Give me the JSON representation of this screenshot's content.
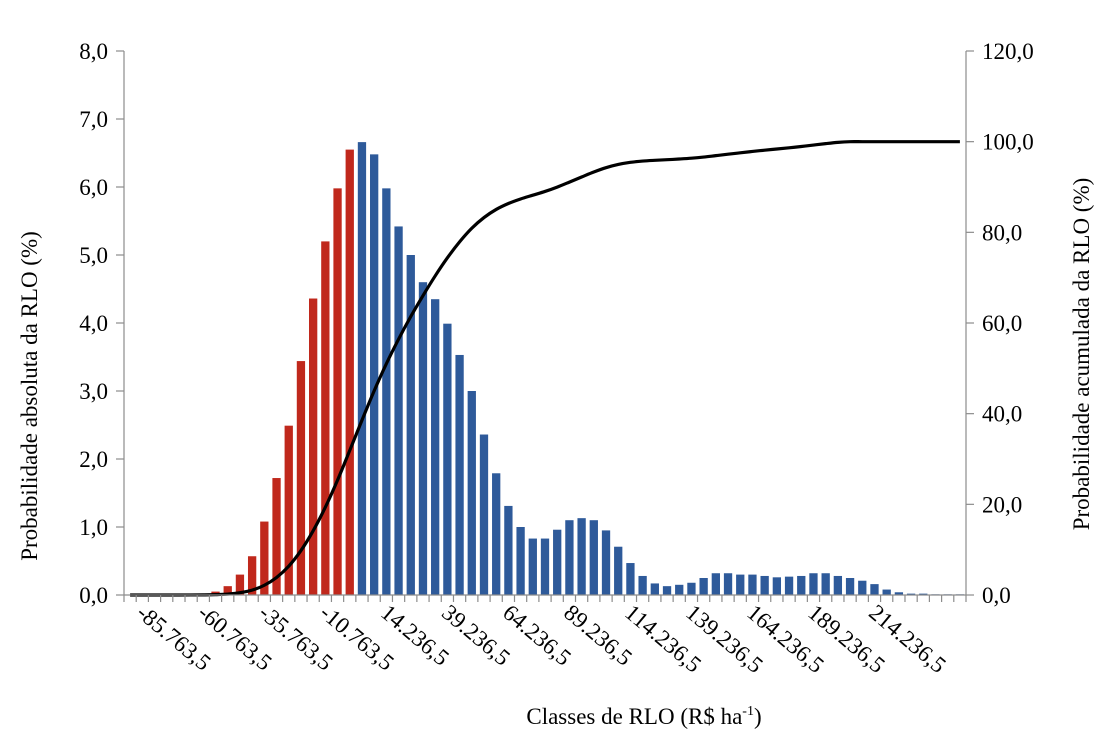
{
  "chart_data": {
    "type": "bar",
    "title": "",
    "xlabel": {
      "main": "Classes de RLO (R$ ha",
      "sup": "-1",
      "close": ")"
    },
    "ylabel": "Probabilidade absoluta da RLO (%)",
    "y2label": "Probabilidade acumulada da RLO (%)",
    "ylim": [
      0,
      8
    ],
    "y2lim": [
      0,
      120
    ],
    "yticks": [
      "0,0",
      "1,0",
      "2,0",
      "3,0",
      "4,0",
      "5,0",
      "6,0",
      "7,0",
      "8,0"
    ],
    "y2ticks": [
      "0,0",
      "20,0",
      "40,0",
      "60,0",
      "80,0",
      "100,0",
      "120,0"
    ],
    "xtick_labels": [
      "-85.763,5",
      "-60.763,5",
      "-35.763,5",
      "-10.763,5",
      "14.236,5",
      "39.236,5",
      "64.236,5",
      "89.236,5",
      "114.236,5",
      "139.236,5",
      "164.236,5",
      "189.236,5",
      "214.236,5"
    ],
    "class_width": 5000,
    "first_class": -90763.5,
    "xtick_every": 5,
    "xtick_start_index": 1,
    "grid": false,
    "legend": "none",
    "negative_color": "#c0281c",
    "positive_color": "#2e5a9a",
    "line_color": "#000000",
    "series": [
      {
        "name": "",
        "type": "bar",
        "values": [
          0.0,
          0.0,
          0.0,
          0.0,
          0.0,
          0.01,
          0.02,
          0.05,
          0.13,
          0.3,
          0.57,
          1.08,
          1.72,
          2.49,
          3.44,
          4.36,
          5.2,
          5.98,
          6.55,
          6.66,
          6.48,
          5.98,
          5.42,
          5.0,
          4.6,
          4.35,
          3.99,
          3.53,
          3.0,
          2.36,
          1.79,
          1.31,
          1.0,
          0.83,
          0.83,
          0.96,
          1.1,
          1.13,
          1.1,
          0.95,
          0.71,
          0.47,
          0.28,
          0.17,
          0.13,
          0.15,
          0.18,
          0.25,
          0.32,
          0.32,
          0.3,
          0.3,
          0.28,
          0.26,
          0.27,
          0.28,
          0.32,
          0.32,
          0.28,
          0.25,
          0.21,
          0.16,
          0.08,
          0.04,
          0.02,
          0.02,
          0.01,
          0.01,
          0.01
        ]
      },
      {
        "name": "",
        "type": "line",
        "axis": "right",
        "values": [
          0.0,
          0.0,
          0.0,
          0.0,
          0.0,
          0.01,
          0.03,
          0.08,
          0.2,
          0.5,
          1.07,
          2.15,
          3.87,
          6.36,
          9.8,
          14.16,
          19.36,
          25.34,
          31.89,
          38.55,
          45.03,
          51.01,
          56.43,
          61.43,
          66.03,
          70.38,
          74.37,
          77.9,
          80.9,
          83.26,
          85.05,
          86.36,
          87.36,
          88.19,
          89.02,
          89.98,
          91.08,
          92.21,
          93.31,
          94.26,
          94.97,
          95.44,
          95.72,
          95.89,
          96.02,
          96.17,
          96.35,
          96.6,
          96.92,
          97.24,
          97.54,
          97.84,
          98.12,
          98.38,
          98.65,
          98.93,
          99.25,
          99.57,
          99.85,
          100.0,
          100.0,
          100.0,
          100.0,
          100.0,
          100.0,
          100.0,
          100.0,
          100.0,
          100.0
        ]
      }
    ]
  }
}
